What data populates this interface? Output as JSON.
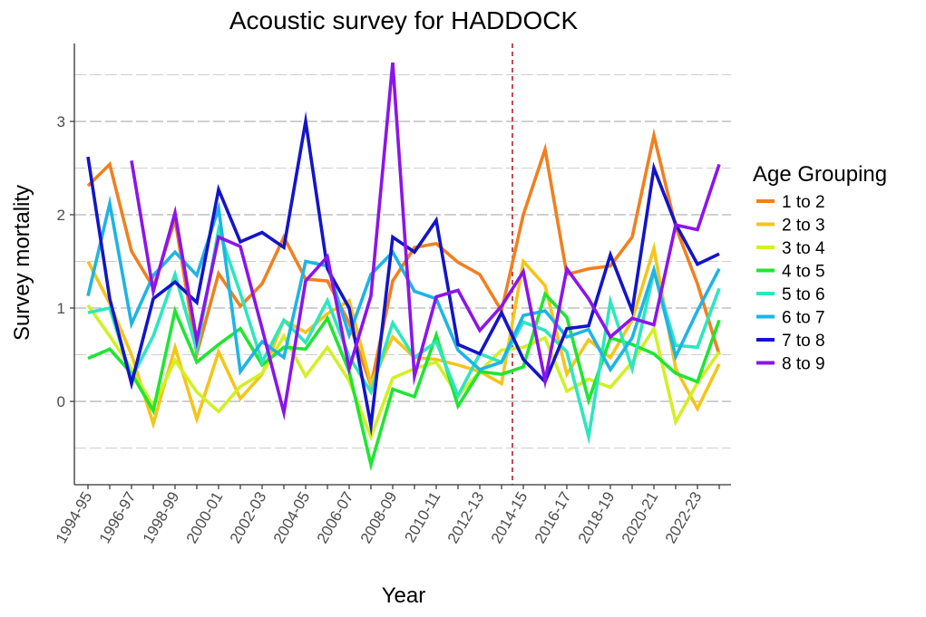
{
  "chart_data": {
    "type": "line",
    "title": "Acoustic survey for HADDOCK",
    "xlabel": "Year",
    "ylabel": "Survey mortality",
    "ylim": [
      -0.89,
      3.83
    ],
    "yticks": [
      0,
      1,
      2,
      3
    ],
    "minor_gridlines_y": [
      -0.5,
      0.5,
      1.5,
      2.5,
      3.5
    ],
    "grid": true,
    "legend_title": "Age Grouping",
    "legend_position": "right",
    "vline": {
      "between": [
        "2013-14",
        "2014-15"
      ],
      "style": "dashed",
      "color": "#B22222"
    },
    "x": [
      "1994-95",
      "1995-96",
      "1996-97",
      "1997-98",
      "1998-99",
      "1999-00",
      "2000-01",
      "2001-02",
      "2002-03",
      "2003-04",
      "2004-05",
      "2005-06",
      "2006-07",
      "2007-08",
      "2008-09",
      "2009-10",
      "2010-11",
      "2011-12",
      "2012-13",
      "2013-14",
      "2014-15",
      "2015-16",
      "2016-17",
      "2017-18",
      "2018-19",
      "2019-20",
      "2020-21",
      "2021-22",
      "2022-23",
      "2023-24"
    ],
    "x_tick_labels": [
      "1994-95",
      "1996-97",
      "1998-99",
      "2000-01",
      "2002-03",
      "2004-05",
      "2006-07",
      "2008-09",
      "2010-11",
      "2012-13",
      "2014-15",
      "2016-17",
      "2018-19",
      "2020-21",
      "2022-23"
    ],
    "series": [
      {
        "name": "1 to 2",
        "color": "#F0801E",
        "values": [
          2.31,
          2.54,
          1.61,
          1.22,
          1.95,
          0.51,
          1.37,
          1.02,
          1.26,
          1.76,
          1.31,
          1.29,
          0.84,
          0.17,
          1.29,
          1.65,
          1.69,
          1.49,
          1.36,
          0.97,
          2.0,
          2.7,
          1.36,
          1.42,
          1.45,
          1.76,
          2.85,
          1.87,
          1.26,
          0.5
        ]
      },
      {
        "name": "2 to 3",
        "color": "#F5C518",
        "values": [
          1.5,
          1.05,
          0.5,
          -0.24,
          0.58,
          -0.19,
          0.53,
          0.03,
          0.29,
          0.87,
          0.74,
          0.94,
          1.08,
          0.19,
          0.69,
          0.47,
          0.45,
          0.39,
          0.32,
          0.19,
          1.5,
          1.24,
          0.29,
          0.66,
          0.47,
          0.87,
          1.64,
          0.35,
          -0.08,
          0.4
        ]
      },
      {
        "name": "3 to 4",
        "color": "#D2F023",
        "values": [
          1.03,
          0.7,
          0.35,
          -0.05,
          0.44,
          0.1,
          -0.11,
          0.16,
          0.3,
          0.7,
          0.27,
          0.58,
          0.22,
          -0.38,
          0.25,
          0.35,
          0.42,
          0.06,
          0.32,
          0.55,
          0.58,
          0.68,
          0.11,
          0.24,
          0.15,
          0.42,
          0.78,
          -0.22,
          0.2,
          0.53
        ]
      },
      {
        "name": "4 to 5",
        "color": "#1EE632",
        "values": [
          0.46,
          0.56,
          0.3,
          -0.1,
          0.97,
          0.42,
          0.61,
          0.78,
          0.39,
          0.58,
          0.56,
          0.89,
          0.32,
          -0.68,
          0.13,
          0.05,
          0.71,
          -0.05,
          0.32,
          0.29,
          0.37,
          1.15,
          0.9,
          0.01,
          0.68,
          0.61,
          0.51,
          0.3,
          0.21,
          0.87
        ]
      },
      {
        "name": "5 to 6",
        "color": "#2DE6BE",
        "values": [
          0.95,
          1.0,
          0.25,
          0.7,
          1.36,
          0.55,
          1.84,
          1.16,
          0.42,
          0.87,
          0.63,
          1.08,
          0.48,
          0.1,
          0.84,
          0.47,
          0.64,
          0.06,
          0.51,
          0.42,
          0.85,
          0.76,
          0.53,
          -0.38,
          1.07,
          0.35,
          1.39,
          0.6,
          0.58,
          1.21
        ]
      },
      {
        "name": "6 to 7",
        "color": "#1EB4E6",
        "values": [
          1.13,
          2.12,
          0.83,
          1.35,
          1.6,
          1.35,
          2.07,
          0.32,
          0.64,
          0.47,
          1.5,
          1.45,
          0.71,
          1.36,
          1.6,
          1.18,
          1.1,
          0.55,
          0.34,
          0.42,
          0.92,
          0.97,
          0.69,
          0.77,
          0.34,
          0.68,
          1.41,
          0.48,
          0.97,
          1.42
        ]
      },
      {
        "name": "7 to 8",
        "color": "#1414C8",
        "values": [
          2.62,
          1.1,
          0.19,
          1.1,
          1.28,
          1.06,
          2.27,
          1.71,
          1.81,
          1.65,
          3.0,
          1.42,
          1.0,
          -0.26,
          1.76,
          1.6,
          1.94,
          0.61,
          0.51,
          0.95,
          0.45,
          0.21,
          0.78,
          0.81,
          1.57,
          0.97,
          2.5,
          1.9,
          1.47,
          1.58
        ]
      },
      {
        "name": "8 to 9",
        "color": "#8C14EB",
        "values": [
          null,
          null,
          2.58,
          1.18,
          2.02,
          0.65,
          1.76,
          1.66,
          0.78,
          -0.12,
          1.29,
          1.55,
          0.35,
          1.13,
          3.63,
          0.27,
          1.12,
          1.19,
          0.76,
          1.02,
          1.39,
          0.22,
          1.42,
          1.1,
          0.69,
          0.89,
          0.82,
          1.89,
          1.84,
          2.54
        ]
      }
    ]
  }
}
